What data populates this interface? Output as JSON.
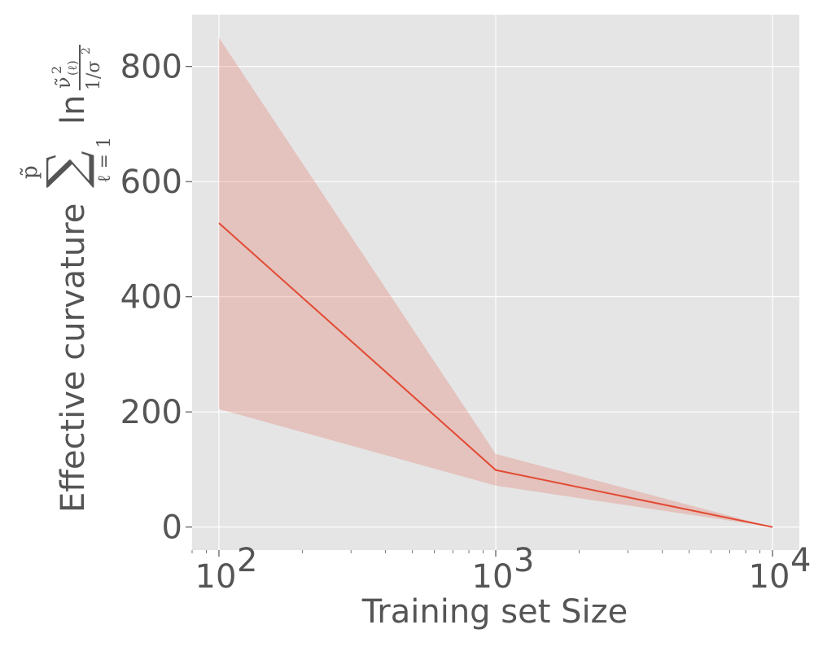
{
  "chart_data": {
    "type": "line",
    "xscale": "log",
    "x": [
      100,
      1000,
      10000
    ],
    "xlim": [
      80,
      12500
    ],
    "ylim": [
      -40,
      890
    ],
    "xticks": [
      100,
      1000,
      10000
    ],
    "xtick_labels": [
      {
        "base": "10",
        "exp": "2"
      },
      {
        "base": "10",
        "exp": "3"
      },
      {
        "base": "10",
        "exp": "4"
      }
    ],
    "yticks": [
      0,
      200,
      400,
      600,
      800
    ],
    "ytick_labels": [
      "0",
      "200",
      "400",
      "600",
      "800"
    ],
    "series": [
      {
        "values": [
          528,
          99,
          0
        ],
        "lower": [
          205,
          72,
          0
        ],
        "upper": [
          850,
          127,
          0
        ]
      }
    ],
    "xlabel": "Training set Size",
    "ylabel": "Effective curvature",
    "ylabel_formula": {
      "sum_symbol": "∑",
      "sum_upper": "p̃",
      "sum_lower": "ℓ = 1",
      "ln": "ln",
      "numerator": "ν̃",
      "numerator_sup": "2",
      "numerator_sub": "(ℓ)",
      "denominator": "1/σ",
      "denominator_sup": "2"
    },
    "grid": true,
    "legend": "none",
    "colors": {
      "background": "#e5e5e5",
      "grid": "#ffffff",
      "line": "#e24a33",
      "band": "#e24a33",
      "text": "#555555"
    }
  }
}
